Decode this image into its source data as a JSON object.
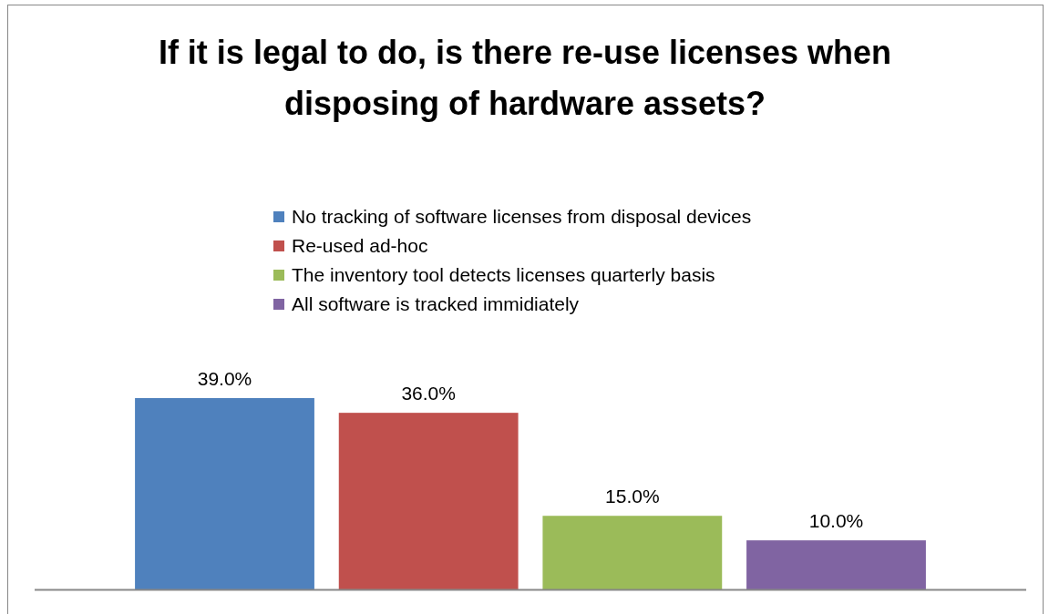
{
  "chart_data": {
    "type": "bar",
    "title": "If it is legal to do, is there re-use licenses when disposing of hardware assets?",
    "categories": [
      null
    ],
    "series": [
      {
        "name": "No tracking of software licenses from disposal devices",
        "color": "#4f81bd",
        "values": [
          39.0
        ],
        "value_labels": [
          "39.0%"
        ]
      },
      {
        "name": "Re-used ad-hoc",
        "color": "#c0504d",
        "values": [
          36.0
        ],
        "value_labels": [
          "36.0%"
        ]
      },
      {
        "name": "The inventory tool detects licenses quarterly basis",
        "color": "#9bbb59",
        "values": [
          15.0
        ],
        "value_labels": [
          "15.0%"
        ]
      },
      {
        "name": "All software is tracked immidiately",
        "color": "#8064a2",
        "values": [
          10.0
        ],
        "value_labels": [
          "10.0%"
        ]
      }
    ],
    "legend": "top"
  }
}
